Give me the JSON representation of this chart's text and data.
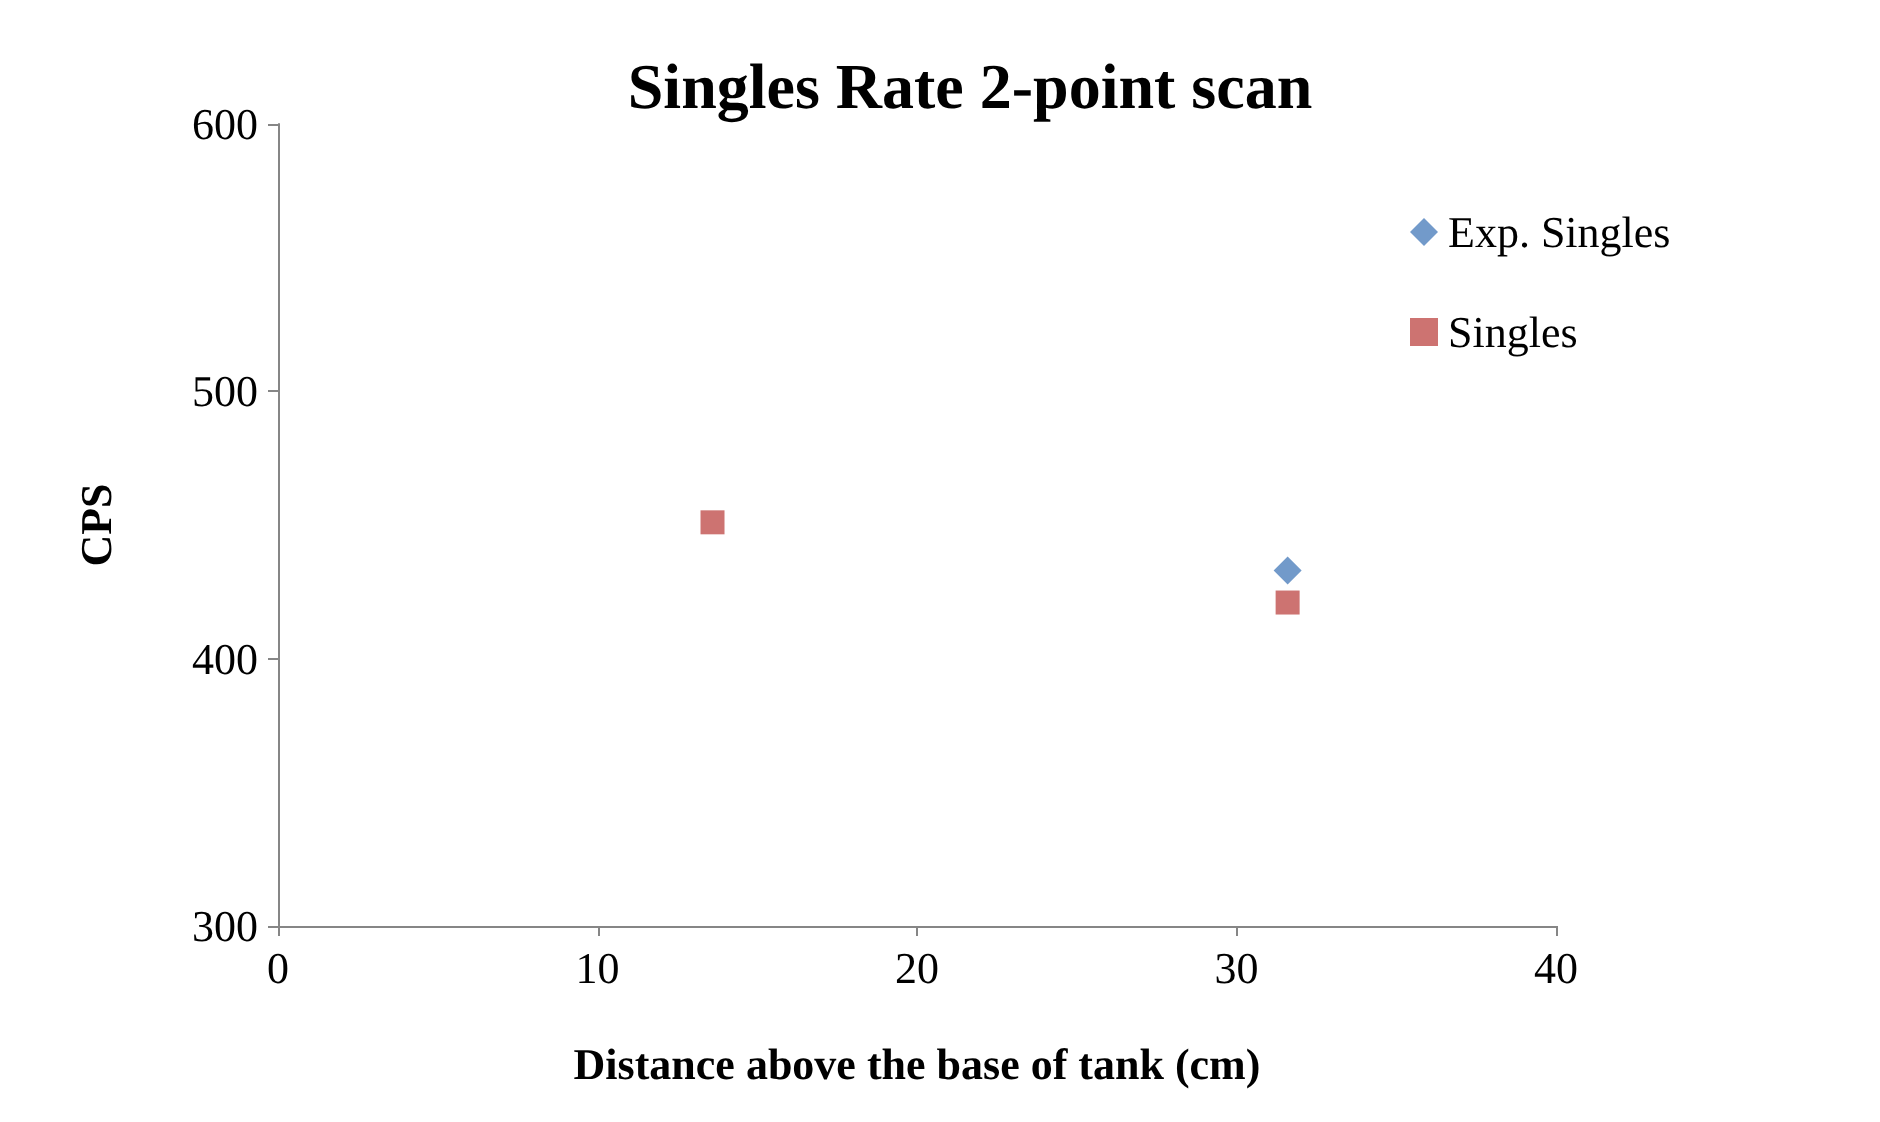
{
  "chart_data": {
    "type": "scatter",
    "title": "Singles Rate 2-point scan",
    "xlabel": "Distance above the base of tank (cm)",
    "ylabel": "CPS",
    "x": [
      13.6,
      31.6
    ],
    "xlim": [
      0,
      40
    ],
    "xticks": [
      0,
      10,
      20,
      30,
      40
    ],
    "ylim": [
      300,
      600
    ],
    "yticks": [
      300,
      400,
      500,
      600
    ],
    "grid": false,
    "legend": "right",
    "series": [
      {
        "name": "Exp. Singles",
        "color": "#4f81bd",
        "marker": "diamond",
        "values": [
          null,
          433
        ]
      },
      {
        "name": "Singles",
        "color": "#c0504d",
        "marker": "square",
        "values": [
          451,
          421
        ]
      }
    ]
  }
}
